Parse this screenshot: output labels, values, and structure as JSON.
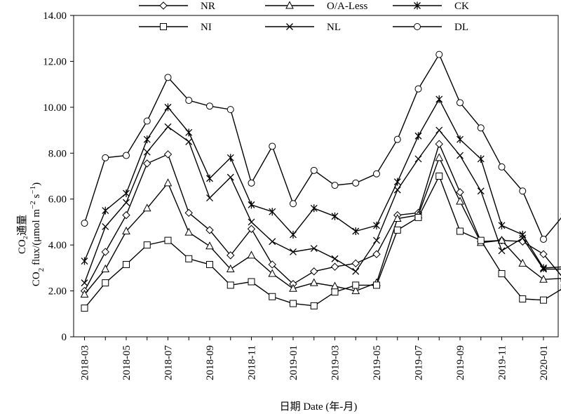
{
  "chart_data": {
    "type": "line",
    "xlabel": "日期 Date (年-月)",
    "ylabel_cn": "CO₂通量",
    "ylabel_en_prefix": "CO",
    "ylabel_en_main": " flux/(μmol m",
    "ylabel_en_mid": " s",
    "ylabel_en_end": ")",
    "ylim": [
      0,
      14
    ],
    "yticks": [
      "0",
      "2.00",
      "4.00",
      "6.00",
      "8.00",
      "10.00",
      "12.00",
      "14.00"
    ],
    "x": [
      "2018-03",
      "2018-04",
      "2018-05",
      "2018-06",
      "2018-07",
      "2018-08",
      "2018-09",
      "2018-10",
      "2018-11",
      "2018-12",
      "2019-01",
      "2019-02",
      "2019-03",
      "2019-04",
      "2019-05",
      "2019-06",
      "2019-07",
      "2019-08",
      "2019-09",
      "2019-10",
      "2019-11",
      "2019-12",
      "2020-01",
      "2020-02"
    ],
    "xtick_labels": [
      "2018-03",
      "2018-05",
      "2018-07",
      "2018-09",
      "2018-11",
      "2019-01",
      "2019-03",
      "2019-05",
      "2019-07",
      "2019-09",
      "2019-11",
      "2020-01"
    ],
    "legend_position": "top",
    "series": [
      {
        "name": "NR",
        "marker": "diamond",
        "values": [
          2.0,
          3.7,
          5.3,
          7.55,
          7.95,
          5.4,
          4.65,
          3.55,
          4.7,
          3.15,
          2.3,
          2.85,
          3.05,
          3.2,
          3.6,
          5.3,
          5.4,
          8.4,
          6.3,
          4.15,
          4.2,
          4.15,
          3.6,
          2.5
        ]
      },
      {
        "name": "O/A-Less",
        "marker": "triangle",
        "values": [
          1.85,
          2.95,
          4.6,
          5.6,
          6.7,
          4.55,
          3.95,
          2.95,
          3.55,
          2.75,
          2.1,
          2.35,
          2.2,
          2.0,
          2.35,
          5.15,
          5.3,
          7.8,
          5.9,
          4.1,
          4.2,
          3.2,
          2.5,
          2.55
        ]
      },
      {
        "name": "CK",
        "marker": "asterisk",
        "values": [
          3.3,
          5.5,
          6.25,
          8.6,
          10.0,
          8.9,
          6.9,
          7.8,
          5.75,
          5.45,
          4.45,
          5.6,
          5.25,
          4.6,
          4.85,
          6.75,
          8.75,
          10.35,
          8.6,
          7.75,
          4.85,
          4.45,
          3.0,
          3.05
        ]
      },
      {
        "name": "NI",
        "marker": "square",
        "values": [
          1.25,
          2.35,
          3.15,
          4.0,
          4.2,
          3.4,
          3.15,
          2.25,
          2.4,
          1.75,
          1.45,
          1.35,
          1.95,
          2.25,
          2.25,
          4.65,
          5.2,
          7.0,
          4.6,
          4.2,
          2.75,
          1.65,
          1.6,
          2.15
        ]
      },
      {
        "name": "NL",
        "marker": "x",
        "values": [
          2.35,
          4.8,
          5.85,
          8.05,
          9.15,
          8.5,
          6.05,
          6.95,
          5.0,
          4.15,
          3.7,
          3.85,
          3.4,
          2.85,
          4.2,
          6.4,
          7.75,
          9.0,
          7.9,
          6.35,
          3.75,
          4.3,
          2.95,
          2.95
        ]
      },
      {
        "name": "DL",
        "marker": "circle",
        "values": [
          4.95,
          7.8,
          7.9,
          9.4,
          11.3,
          10.3,
          10.05,
          9.9,
          6.7,
          8.3,
          5.8,
          7.25,
          6.6,
          6.7,
          7.1,
          8.6,
          10.8,
          12.3,
          10.2,
          9.1,
          7.4,
          6.35,
          4.25,
          5.35
        ]
      }
    ]
  }
}
